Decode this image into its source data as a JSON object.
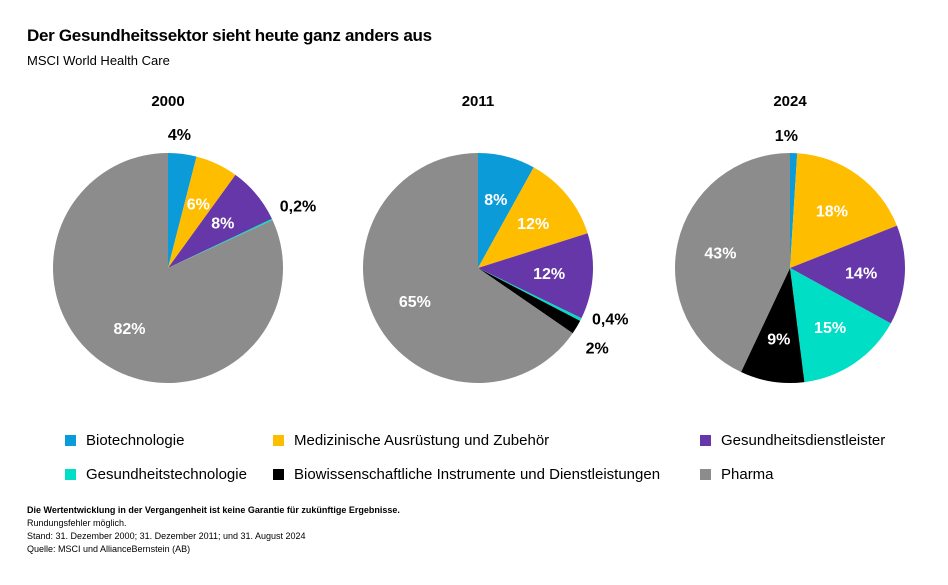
{
  "header": {
    "title": "Der Gesundheitssektor sieht heute ganz anders aus",
    "subtitle": "MSCI World Health Care"
  },
  "chart_data": {
    "type": "pie",
    "categories": [
      "Biotechnologie",
      "Medizinische Ausrüstung und Zubehör",
      "Gesundheitsdienstleister",
      "Gesundheitstechnologie",
      "Biowissenschaftliche Instrumente und Dienstleistungen",
      "Pharma"
    ],
    "colors": [
      "#0b9bd8",
      "#ffbd00",
      "#6637a8",
      "#00dfc5",
      "#000000",
      "#8c8c8c"
    ],
    "pies": [
      {
        "title": "2000",
        "values": [
          4,
          6,
          8,
          0.2,
          0,
          82
        ],
        "labels": [
          "4%",
          "6%",
          "8%",
          "0,2%",
          "",
          "82%"
        ]
      },
      {
        "title": "2011",
        "values": [
          8,
          12,
          12,
          0.4,
          2,
          65
        ],
        "labels": [
          "8%",
          "12%",
          "12%",
          "0,4%",
          "2%",
          "65%"
        ]
      },
      {
        "title": "2024",
        "values": [
          1,
          18,
          14,
          15,
          9,
          43
        ],
        "labels": [
          "1%",
          "18%",
          "14%",
          "15%",
          "9%",
          "43%"
        ]
      }
    ]
  },
  "footer": {
    "disclaimer": "Die Wertentwicklung in der Vergangenheit ist keine Garantie für zukünftige Ergebnisse.",
    "rounding": "Rundungsfehler möglich.",
    "date": "Stand: 31. Dezember 2000; 31. Dezember 2011; und 31. August 2024",
    "source": "Quelle: MSCI und AllianceBernstein (AB)"
  }
}
